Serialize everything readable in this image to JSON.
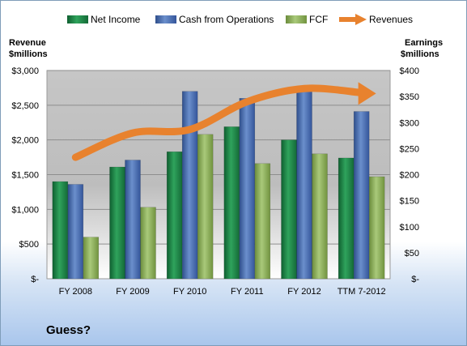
{
  "colors": {
    "net_income": "#1f8a4c",
    "cash_from_operations": "#4b6fb0",
    "fcf": "#8fb060",
    "revenues": "#e8822e"
  },
  "legend": {
    "net_income": "Net Income",
    "cash_from_operations": "Cash from Operations",
    "fcf": "FCF",
    "revenues": "Revenues"
  },
  "footnote": "Guess?",
  "chart_data": {
    "type": "bar",
    "categories": [
      "FY 2008",
      "FY 2009",
      "FY 2010",
      "FY 2011",
      "FY 2012",
      "TTM 7-2012"
    ],
    "left_axis": {
      "title_line1": "Revenue",
      "title_line2": "$millions",
      "ylim": [
        0,
        3000
      ],
      "ticks": [
        0,
        500,
        1000,
        1500,
        2000,
        2500,
        3000
      ],
      "tick_labels": [
        "$-",
        "$500",
        "$1,000",
        "$1,500",
        "$2,000",
        "$2,500",
        "$3,000"
      ]
    },
    "right_axis": {
      "title_line1": "Earnings",
      "title_line2": "$millions",
      "ylim": [
        0,
        400
      ],
      "ticks": [
        0,
        50,
        100,
        150,
        200,
        250,
        300,
        350,
        400
      ],
      "tick_labels": [
        "$-",
        "$50",
        "$100",
        "$150",
        "$200",
        "$250",
        "$300",
        "$350",
        "$400"
      ]
    },
    "series": [
      {
        "key": "net_income",
        "name": "Net Income",
        "axis": "left",
        "values": [
          1400,
          1610,
          1830,
          2190,
          2000,
          1740
        ]
      },
      {
        "key": "cash_from_operations",
        "name": "Cash from Operations",
        "axis": "left",
        "values": [
          1360,
          1710,
          2700,
          2600,
          2760,
          2410
        ]
      },
      {
        "key": "fcf",
        "name": "FCF",
        "axis": "left",
        "values": [
          600,
          1030,
          2080,
          1660,
          1800,
          1470
        ]
      },
      {
        "key": "revenues",
        "name": "Revenues",
        "axis": "left",
        "type": "line",
        "values": [
          1750,
          2100,
          2150,
          2550,
          2740,
          2680
        ]
      }
    ],
    "grid": true,
    "legend_position": "top"
  }
}
